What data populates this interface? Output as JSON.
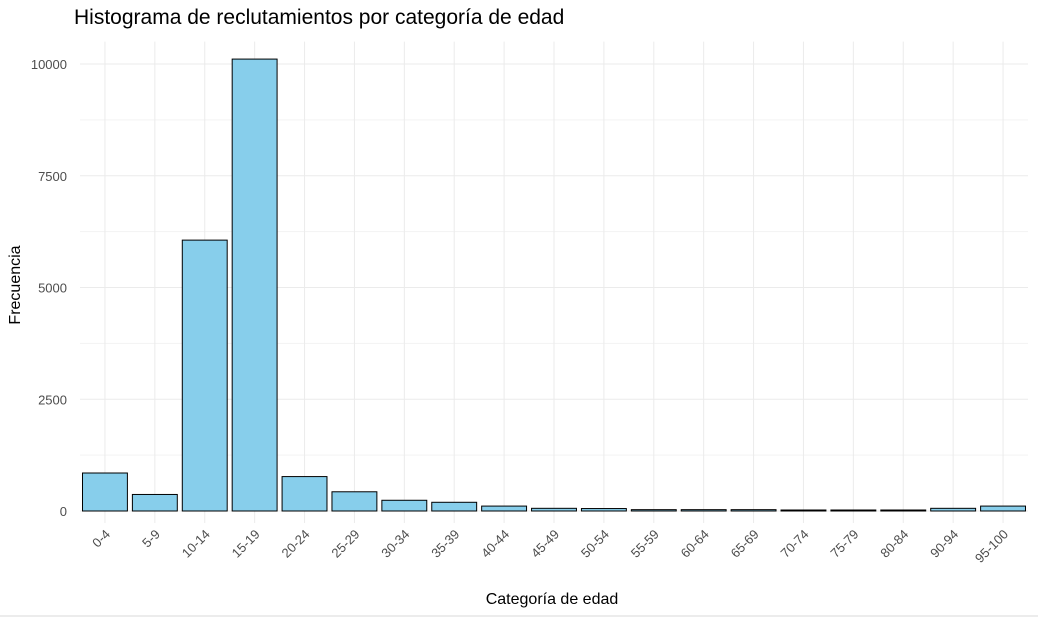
{
  "chart_data": {
    "type": "bar",
    "title": "Histograma de reclutamientos por categoría de edad",
    "xlabel": "Categoría de edad",
    "ylabel": "Frecuencia",
    "categories": [
      "0-4",
      "5-9",
      "10-14",
      "15-19",
      "20-24",
      "25-29",
      "30-34",
      "35-39",
      "40-44",
      "45-49",
      "50-54",
      "55-59",
      "60-64",
      "65-69",
      "70-74",
      "75-79",
      "80-84",
      "90-94",
      "95-100"
    ],
    "values": [
      850,
      370,
      6060,
      10110,
      770,
      430,
      240,
      195,
      110,
      60,
      55,
      30,
      30,
      30,
      15,
      15,
      15,
      60,
      110
    ],
    "ylim": [
      0,
      10500
    ],
    "yticks": [
      0,
      2500,
      5000,
      7500,
      10000
    ],
    "ytick_labels": [
      "0",
      "2500",
      "5000",
      "7500",
      "10000"
    ],
    "grid": true,
    "bar_color": "#87ceeb",
    "bar_border_color": "#000000"
  }
}
